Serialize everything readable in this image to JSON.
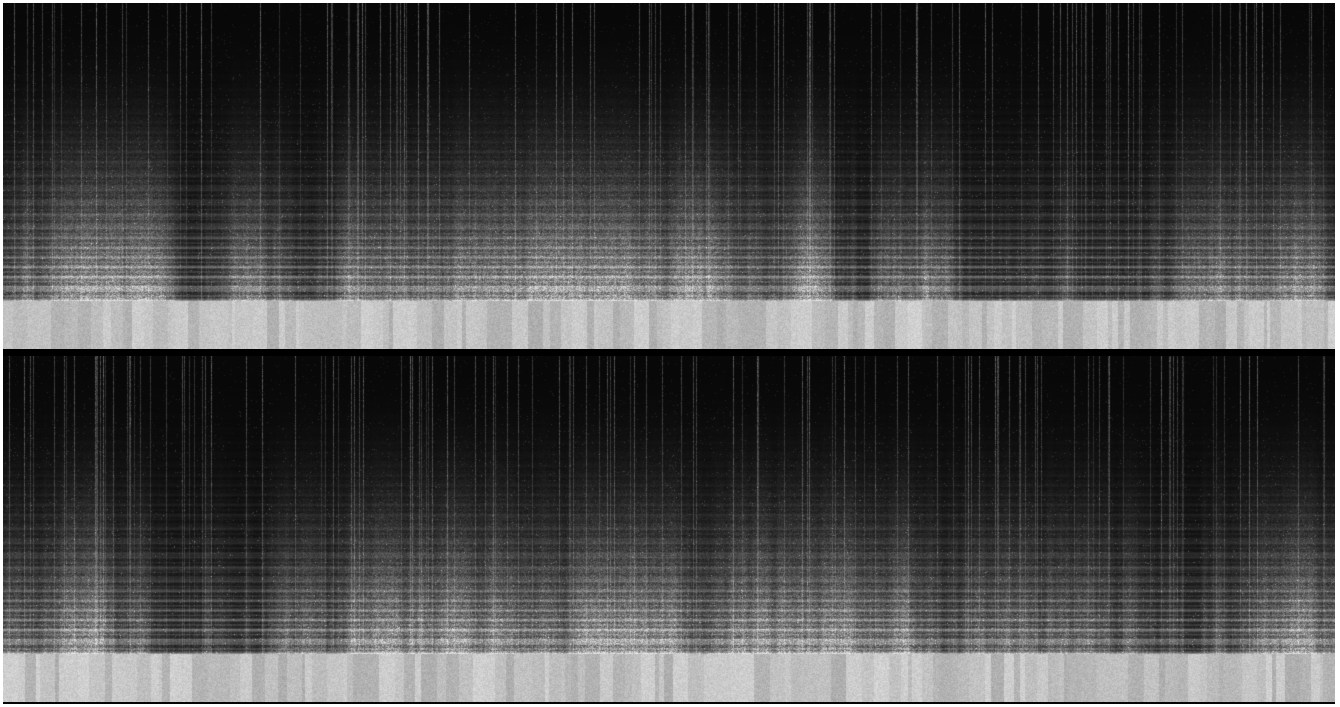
{
  "image": {
    "kind": "spectrogram",
    "channels": 2,
    "colormap": "grayscale",
    "background_color": "#050505",
    "border_color": "#ffffff",
    "divider_color": "#000000"
  }
}
